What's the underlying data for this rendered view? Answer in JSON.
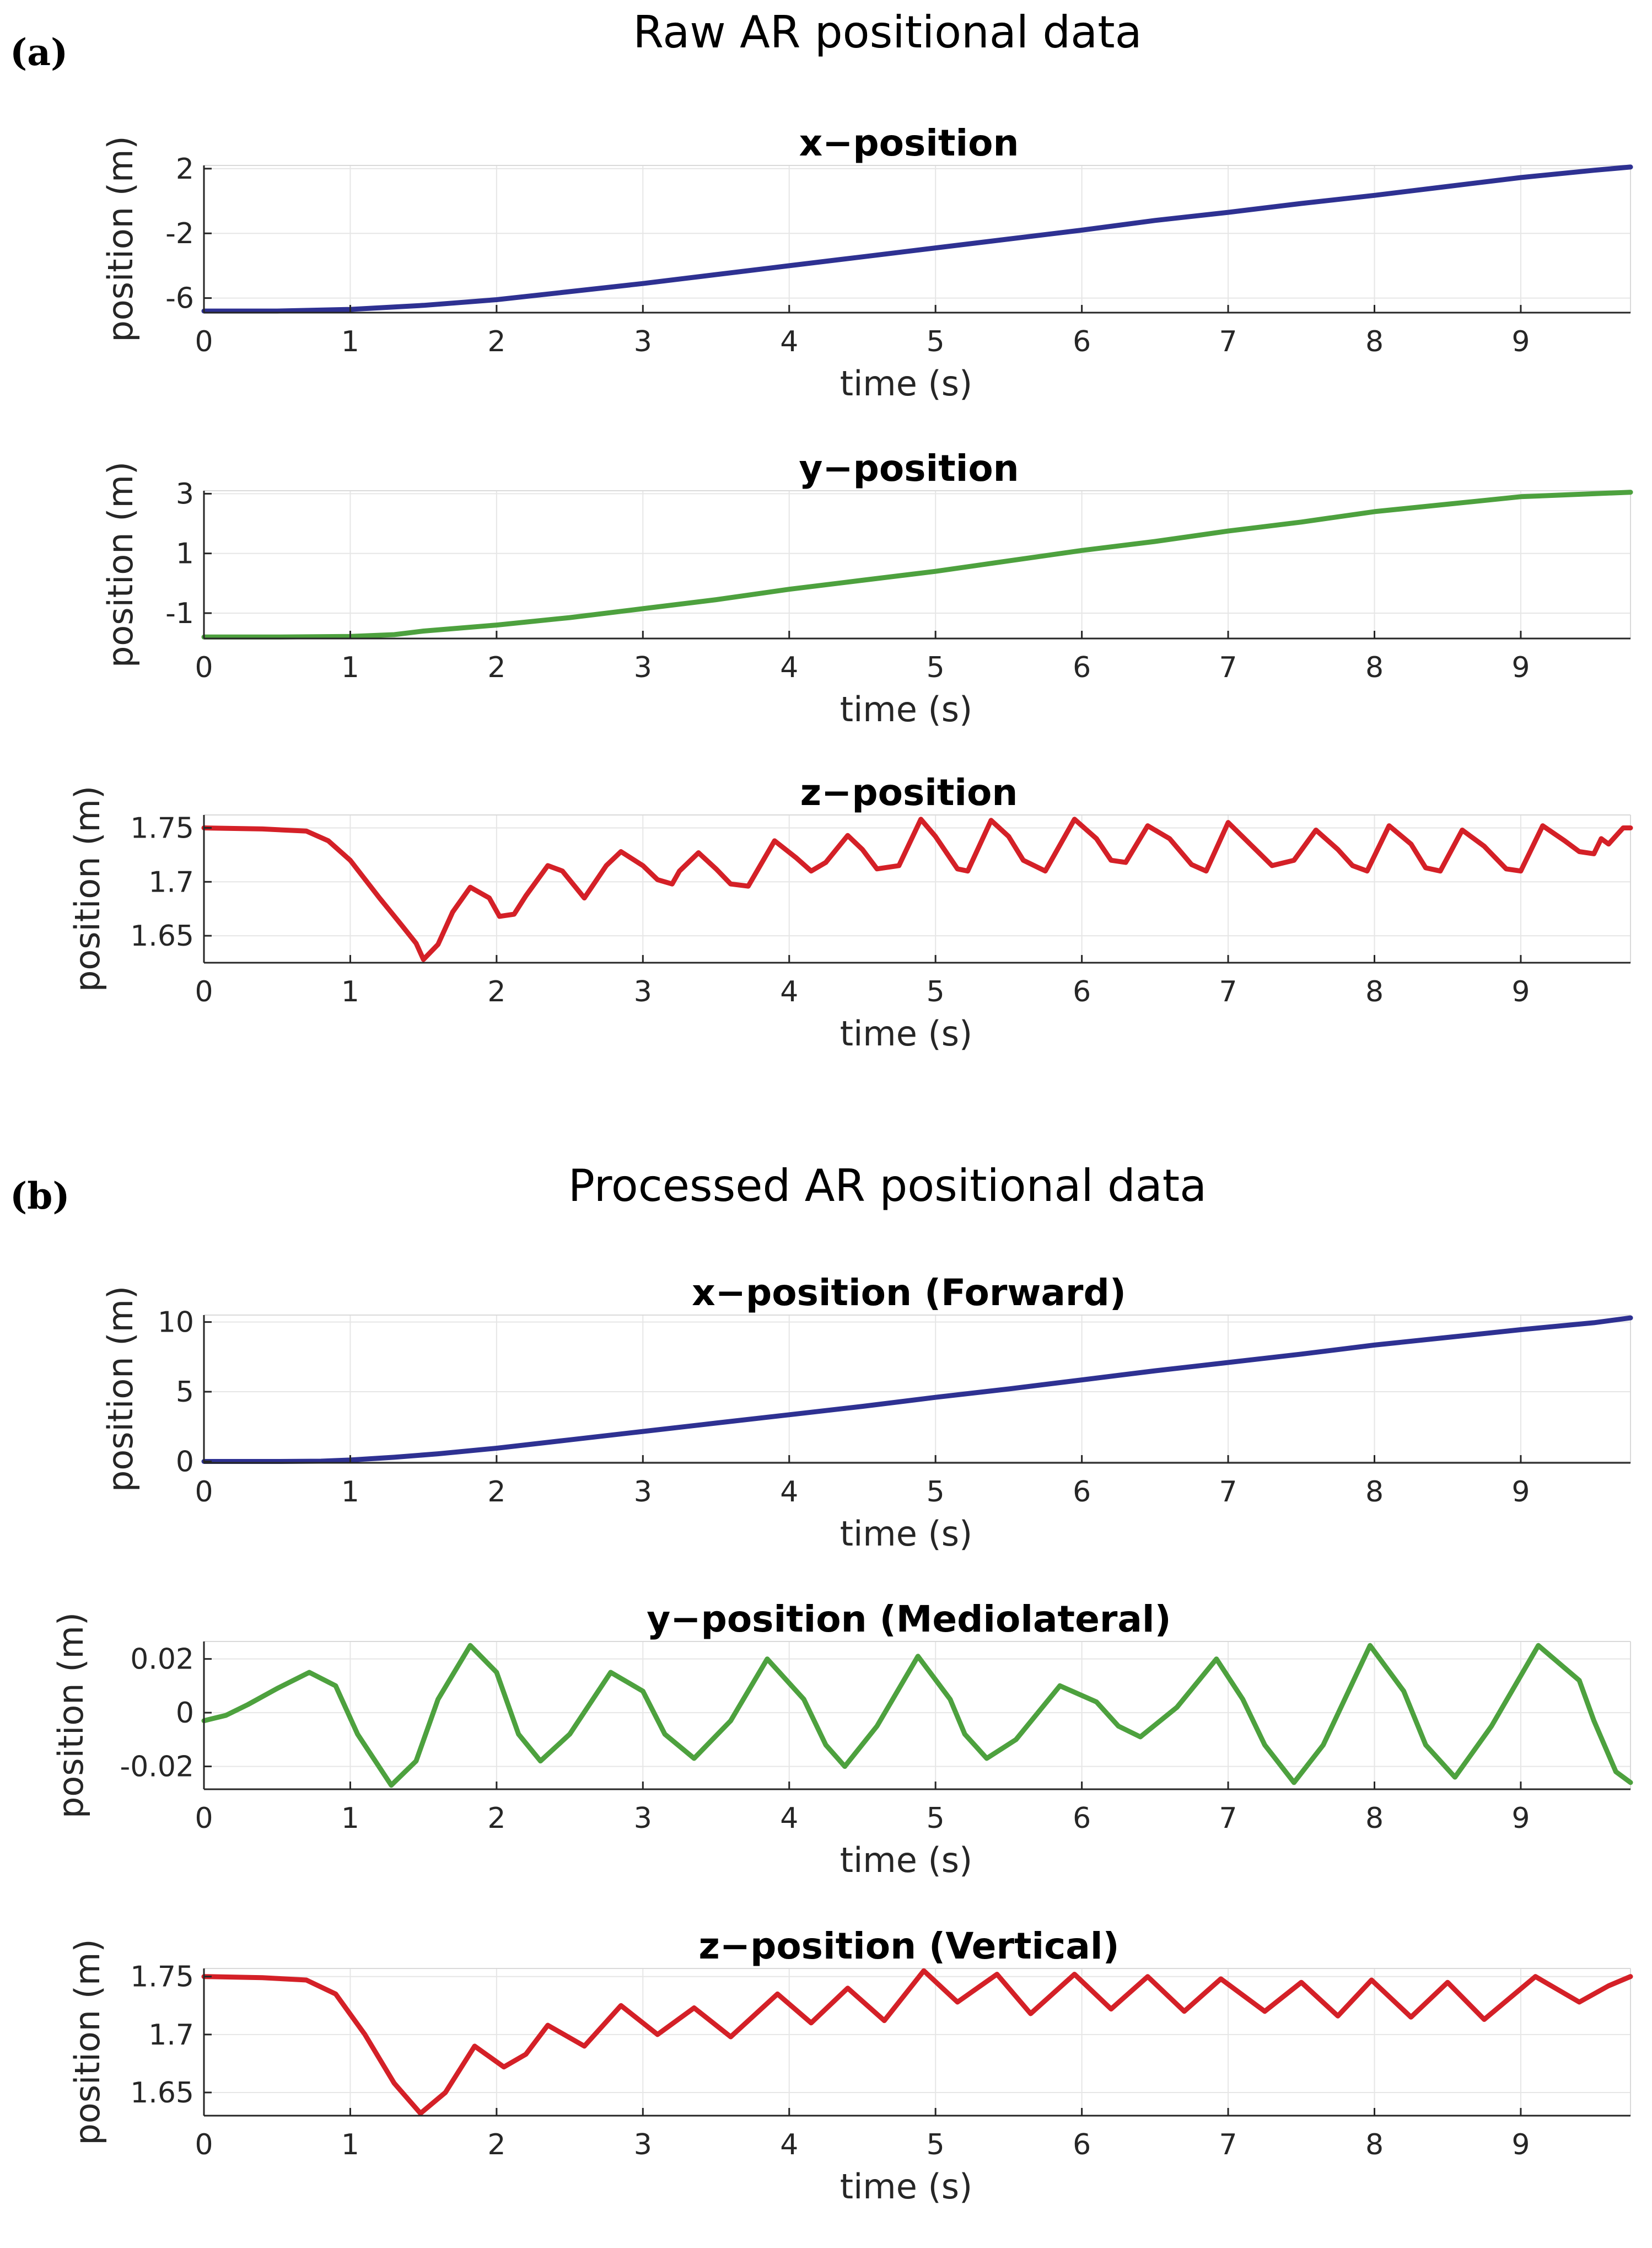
{
  "panels": [
    {
      "label": "(a)",
      "title": "Raw AR positional data"
    },
    {
      "label": "(b)",
      "title": "Processed AR positional data"
    }
  ],
  "chart_data": [
    {
      "type": "line",
      "panel": "(a)",
      "title": "x−position",
      "xlabel": "time (s)",
      "ylabel": "position (m)",
      "xlim": [
        0,
        9.75
      ],
      "ylim": [
        -6.9,
        2.2
      ],
      "xticks": [
        0,
        1,
        2,
        3,
        4,
        5,
        6,
        7,
        8,
        9
      ],
      "yticks": [
        -6,
        -2,
        2
      ],
      "xtick_labels": [
        "0",
        "1",
        "2",
        "3",
        "4",
        "5",
        "6",
        "7",
        "8",
        "9"
      ],
      "ytick_labels": [
        "-6",
        "-2",
        "2"
      ],
      "grid": true,
      "color": "#2e3192",
      "series": [
        {
          "name": "x-position",
          "x": [
            0,
            0.5,
            1,
            1.5,
            2,
            2.5,
            3,
            3.5,
            4,
            4.5,
            5,
            5.5,
            6,
            6.5,
            7,
            7.5,
            8,
            8.5,
            9,
            9.5,
            9.75
          ],
          "y": [
            -6.8,
            -6.8,
            -6.7,
            -6.45,
            -6.1,
            -5.6,
            -5.1,
            -4.55,
            -4.0,
            -3.45,
            -2.9,
            -2.35,
            -1.8,
            -1.2,
            -0.7,
            -0.15,
            0.35,
            0.9,
            1.45,
            1.9,
            2.1
          ]
        }
      ]
    },
    {
      "type": "line",
      "panel": "(a)",
      "title": "y−position",
      "xlabel": "time (s)",
      "ylabel": "position (m)",
      "xlim": [
        0,
        9.75
      ],
      "ylim": [
        -1.85,
        3.1
      ],
      "xticks": [
        0,
        1,
        2,
        3,
        4,
        5,
        6,
        7,
        8,
        9
      ],
      "yticks": [
        -1,
        1,
        3
      ],
      "xtick_labels": [
        "0",
        "1",
        "2",
        "3",
        "4",
        "5",
        "6",
        "7",
        "8",
        "9"
      ],
      "ytick_labels": [
        "-1",
        "1",
        "3"
      ],
      "grid": true,
      "color": "#4da13e",
      "series": [
        {
          "name": "y-position",
          "x": [
            0,
            0.5,
            1,
            1.3,
            1.5,
            2,
            2.5,
            3,
            3.5,
            4,
            4.5,
            5,
            5.5,
            6,
            6.5,
            7,
            7.5,
            8,
            8.5,
            9,
            9.5,
            9.75
          ],
          "y": [
            -1.8,
            -1.8,
            -1.78,
            -1.72,
            -1.6,
            -1.4,
            -1.15,
            -0.85,
            -0.55,
            -0.2,
            0.1,
            0.4,
            0.75,
            1.1,
            1.4,
            1.75,
            2.05,
            2.4,
            2.65,
            2.9,
            3.0,
            3.05
          ]
        }
      ]
    },
    {
      "type": "line",
      "panel": "(a)",
      "title": "z−position",
      "xlabel": "time (s)",
      "ylabel": "position (m)",
      "xlim": [
        0,
        9.75
      ],
      "ylim": [
        1.625,
        1.762
      ],
      "xticks": [
        0,
        1,
        2,
        3,
        4,
        5,
        6,
        7,
        8,
        9
      ],
      "yticks": [
        1.65,
        1.7,
        1.75
      ],
      "xtick_labels": [
        "0",
        "1",
        "2",
        "3",
        "4",
        "5",
        "6",
        "7",
        "8",
        "9"
      ],
      "ytick_labels": [
        "1.65",
        "1.7",
        "1.75"
      ],
      "grid": true,
      "color": "#d42027",
      "series": [
        {
          "name": "z-position",
          "x": [
            0,
            0.4,
            0.7,
            0.85,
            1.0,
            1.2,
            1.35,
            1.45,
            1.5,
            1.6,
            1.7,
            1.82,
            1.95,
            2.02,
            2.12,
            2.2,
            2.35,
            2.45,
            2.6,
            2.75,
            2.85,
            3.0,
            3.1,
            3.2,
            3.25,
            3.38,
            3.5,
            3.6,
            3.72,
            3.9,
            4.05,
            4.15,
            4.25,
            4.4,
            4.5,
            4.6,
            4.75,
            4.9,
            5.0,
            5.15,
            5.22,
            5.38,
            5.5,
            5.6,
            5.75,
            5.95,
            6.1,
            6.2,
            6.3,
            6.45,
            6.6,
            6.75,
            6.85,
            7.0,
            7.15,
            7.3,
            7.45,
            7.6,
            7.75,
            7.85,
            7.95,
            8.1,
            8.25,
            8.35,
            8.45,
            8.6,
            8.75,
            8.9,
            9.0,
            9.15,
            9.3,
            9.4,
            9.5,
            9.55,
            9.6,
            9.7,
            9.75
          ],
          "y": [
            1.75,
            1.749,
            1.747,
            1.738,
            1.72,
            1.685,
            1.66,
            1.643,
            1.628,
            1.642,
            1.672,
            1.695,
            1.685,
            1.668,
            1.67,
            1.687,
            1.715,
            1.71,
            1.685,
            1.715,
            1.728,
            1.715,
            1.702,
            1.698,
            1.71,
            1.727,
            1.712,
            1.698,
            1.696,
            1.738,
            1.722,
            1.71,
            1.718,
            1.743,
            1.73,
            1.712,
            1.715,
            1.758,
            1.742,
            1.712,
            1.71,
            1.757,
            1.742,
            1.72,
            1.71,
            1.758,
            1.74,
            1.72,
            1.718,
            1.752,
            1.74,
            1.716,
            1.71,
            1.755,
            1.735,
            1.715,
            1.72,
            1.748,
            1.73,
            1.715,
            1.71,
            1.752,
            1.735,
            1.713,
            1.71,
            1.748,
            1.733,
            1.712,
            1.71,
            1.752,
            1.738,
            1.728,
            1.726,
            1.74,
            1.735,
            1.75,
            1.75
          ]
        }
      ]
    },
    {
      "type": "line",
      "panel": "(b)",
      "title": "x−position (Forward)",
      "xlabel": "time (s)",
      "ylabel": "position (m)",
      "xlim": [
        0,
        9.75
      ],
      "ylim": [
        -0.1,
        10.5
      ],
      "xticks": [
        0,
        1,
        2,
        3,
        4,
        5,
        6,
        7,
        8,
        9
      ],
      "yticks": [
        0,
        5,
        10
      ],
      "xtick_labels": [
        "0",
        "1",
        "2",
        "3",
        "4",
        "5",
        "6",
        "7",
        "8",
        "9"
      ],
      "ytick_labels": [
        "0",
        "5",
        "10"
      ],
      "grid": true,
      "color": "#2e3192",
      "series": [
        {
          "name": "x-position (Forward)",
          "x": [
            0,
            0.5,
            0.8,
            1,
            1.3,
            1.6,
            2,
            2.5,
            3,
            3.5,
            4,
            4.5,
            5,
            5.5,
            6,
            6.5,
            7,
            7.5,
            8,
            8.5,
            9,
            9.5,
            9.75
          ],
          "y": [
            0,
            0,
            0.02,
            0.1,
            0.3,
            0.55,
            0.95,
            1.55,
            2.15,
            2.75,
            3.35,
            3.95,
            4.6,
            5.2,
            5.85,
            6.5,
            7.1,
            7.7,
            8.35,
            8.9,
            9.45,
            9.95,
            10.3
          ]
        }
      ]
    },
    {
      "type": "line",
      "panel": "(b)",
      "title": "y−position (Mediolateral)",
      "xlabel": "time (s)",
      "ylabel": "position (m)",
      "xlim": [
        0,
        9.75
      ],
      "ylim": [
        -0.0285,
        0.0265
      ],
      "xticks": [
        0,
        1,
        2,
        3,
        4,
        5,
        6,
        7,
        8,
        9
      ],
      "yticks": [
        -0.02,
        0,
        0.02
      ],
      "xtick_labels": [
        "0",
        "1",
        "2",
        "3",
        "4",
        "5",
        "6",
        "7",
        "8",
        "9"
      ],
      "ytick_labels": [
        "-0.02",
        "0",
        "0.02"
      ],
      "grid": true,
      "color": "#4da13e",
      "series": [
        {
          "name": "y-position (Mediolateral)",
          "x": [
            0,
            0.15,
            0.3,
            0.5,
            0.72,
            0.9,
            1.05,
            1.28,
            1.45,
            1.6,
            1.82,
            2.0,
            2.15,
            2.3,
            2.5,
            2.78,
            3.0,
            3.15,
            3.35,
            3.6,
            3.85,
            4.1,
            4.25,
            4.38,
            4.6,
            4.88,
            5.1,
            5.2,
            5.35,
            5.55,
            5.85,
            6.1,
            6.25,
            6.4,
            6.65,
            6.92,
            7.1,
            7.25,
            7.45,
            7.65,
            7.97,
            8.2,
            8.35,
            8.55,
            8.8,
            9.12,
            9.4,
            9.5,
            9.65,
            9.75
          ],
          "y": [
            -0.003,
            -0.001,
            0.003,
            0.009,
            0.015,
            0.01,
            -0.008,
            -0.027,
            -0.018,
            0.005,
            0.025,
            0.015,
            -0.008,
            -0.018,
            -0.008,
            0.015,
            0.008,
            -0.008,
            -0.017,
            -0.003,
            0.02,
            0.005,
            -0.012,
            -0.02,
            -0.005,
            0.021,
            0.005,
            -0.008,
            -0.017,
            -0.01,
            0.01,
            0.004,
            -0.005,
            -0.009,
            0.002,
            0.02,
            0.005,
            -0.012,
            -0.026,
            -0.012,
            0.025,
            0.008,
            -0.012,
            -0.024,
            -0.005,
            0.025,
            0.012,
            -0.003,
            -0.022,
            -0.026
          ]
        }
      ]
    },
    {
      "type": "line",
      "panel": "(b)",
      "title": "z−position (Vertical)",
      "xlabel": "time (s)",
      "ylabel": "position (m)",
      "xlim": [
        0,
        9.75
      ],
      "ylim": [
        1.63,
        1.757
      ],
      "xticks": [
        0,
        1,
        2,
        3,
        4,
        5,
        6,
        7,
        8,
        9
      ],
      "yticks": [
        1.65,
        1.7,
        1.75
      ],
      "xtick_labels": [
        "0",
        "1",
        "2",
        "3",
        "4",
        "5",
        "6",
        "7",
        "8",
        "9"
      ],
      "ytick_labels": [
        "1.65",
        "1.7",
        "1.75"
      ],
      "grid": true,
      "color": "#d42027",
      "series": [
        {
          "name": "z-position (Vertical)",
          "x": [
            0,
            0.4,
            0.7,
            0.9,
            1.1,
            1.3,
            1.48,
            1.65,
            1.85,
            2.05,
            2.2,
            2.35,
            2.6,
            2.85,
            3.1,
            3.35,
            3.6,
            3.92,
            4.15,
            4.4,
            4.65,
            4.92,
            5.15,
            5.42,
            5.65,
            5.95,
            6.2,
            6.45,
            6.7,
            6.95,
            7.25,
            7.5,
            7.75,
            7.98,
            8.25,
            8.5,
            8.75,
            9.1,
            9.4,
            9.6,
            9.75
          ],
          "y": [
            1.75,
            1.749,
            1.747,
            1.735,
            1.7,
            1.658,
            1.632,
            1.65,
            1.69,
            1.672,
            1.683,
            1.708,
            1.69,
            1.725,
            1.7,
            1.723,
            1.698,
            1.735,
            1.71,
            1.74,
            1.712,
            1.755,
            1.728,
            1.752,
            1.718,
            1.752,
            1.722,
            1.75,
            1.72,
            1.748,
            1.72,
            1.745,
            1.716,
            1.747,
            1.715,
            1.745,
            1.713,
            1.75,
            1.728,
            1.742,
            1.75
          ]
        }
      ]
    }
  ]
}
